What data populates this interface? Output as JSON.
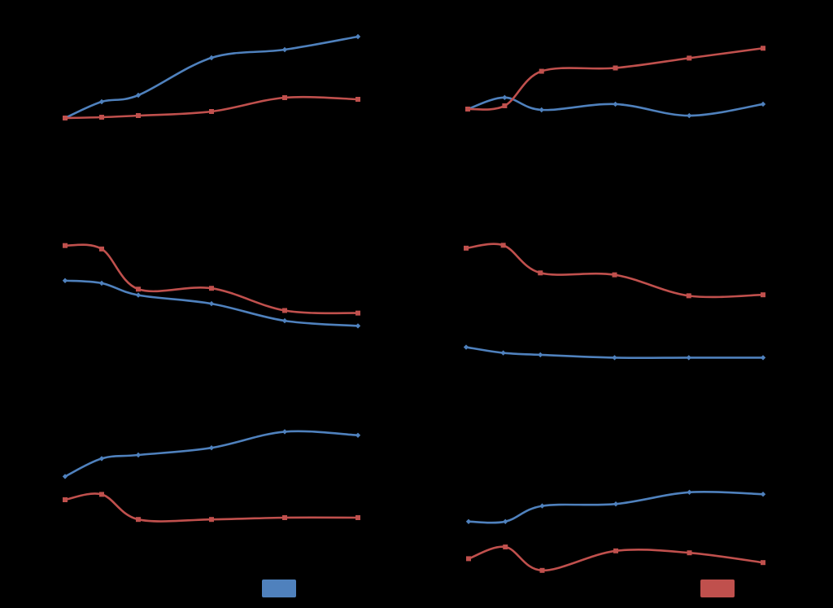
{
  "colors": {
    "background": "#000000",
    "series_a": "#4f81bd",
    "series_b": "#c0504d"
  },
  "legend": {
    "series_a_color": "#4f81bd",
    "series_b_color": "#c0504d"
  },
  "chart_data": [
    {
      "type": "line",
      "smooth": true,
      "x": [
        0,
        1,
        2,
        4,
        6,
        8
      ],
      "ylim": [
        0,
        60
      ],
      "series": [
        {
          "color": "#4f81bd",
          "marker": "diamond",
          "values": [
            0,
            10,
            14,
            37,
            42,
            50
          ]
        },
        {
          "color": "#c0504d",
          "marker": "square",
          "values": [
            0,
            0.5,
            1.5,
            4,
            12.5,
            11.5
          ]
        }
      ]
    },
    {
      "type": "line",
      "smooth": true,
      "x": [
        0,
        1,
        2,
        4,
        6,
        8
      ],
      "ylim": [
        0,
        50
      ],
      "series": [
        {
          "color": "#4f81bd",
          "marker": "diamond",
          "values": [
            0,
            7,
            -0.5,
            3,
            -4,
            3
          ]
        },
        {
          "color": "#c0504d",
          "marker": "square",
          "values": [
            0,
            2,
            23,
            25,
            31,
            37
          ]
        }
      ]
    },
    {
      "type": "line",
      "smooth": true,
      "x": [
        0,
        1,
        2,
        4,
        6,
        8
      ],
      "ylim": [
        0,
        20
      ],
      "series": [
        {
          "color": "#4f81bd",
          "marker": "diamond",
          "values": [
            10.5,
            10.2,
            8.8,
            7.8,
            5.8,
            5.2
          ]
        },
        {
          "color": "#c0504d",
          "marker": "square",
          "values": [
            14.6,
            14.2,
            9.5,
            9.6,
            7.0,
            6.7
          ]
        }
      ]
    },
    {
      "type": "line",
      "smooth": true,
      "x": [
        0,
        1,
        2,
        4,
        6,
        8
      ],
      "ylim": [
        0,
        20
      ],
      "series": [
        {
          "color": "#4f81bd",
          "marker": "diamond",
          "values": [
            3.2,
            2.6,
            2.4,
            2.1,
            2.1,
            2.1
          ]
        },
        {
          "color": "#c0504d",
          "marker": "square",
          "values": [
            13.6,
            13.9,
            11.0,
            10.8,
            8.6,
            8.7
          ]
        }
      ]
    },
    {
      "type": "line",
      "smooth": true,
      "x": [
        0,
        1,
        2,
        4,
        6,
        8
      ],
      "ylim": [
        0,
        10
      ],
      "series": [
        {
          "color": "#4f81bd",
          "marker": "diamond",
          "values": [
            4.3,
            5.3,
            5.5,
            5.9,
            6.8,
            6.6
          ]
        },
        {
          "color": "#c0504d",
          "marker": "square",
          "values": [
            3.0,
            3.3,
            1.9,
            1.9,
            2.0,
            2.0
          ]
        }
      ]
    },
    {
      "type": "line",
      "smooth": true,
      "x": [
        0,
        1,
        2,
        4,
        6,
        8
      ],
      "ylim": [
        0,
        10
      ],
      "series": [
        {
          "color": "#4f81bd",
          "marker": "diamond",
          "values": [
            3.3,
            3.3,
            4.1,
            4.2,
            4.8,
            4.7
          ]
        },
        {
          "color": "#c0504d",
          "marker": "square",
          "values": [
            1.4,
            2.0,
            0.8,
            1.8,
            1.7,
            1.2
          ]
        }
      ]
    }
  ]
}
